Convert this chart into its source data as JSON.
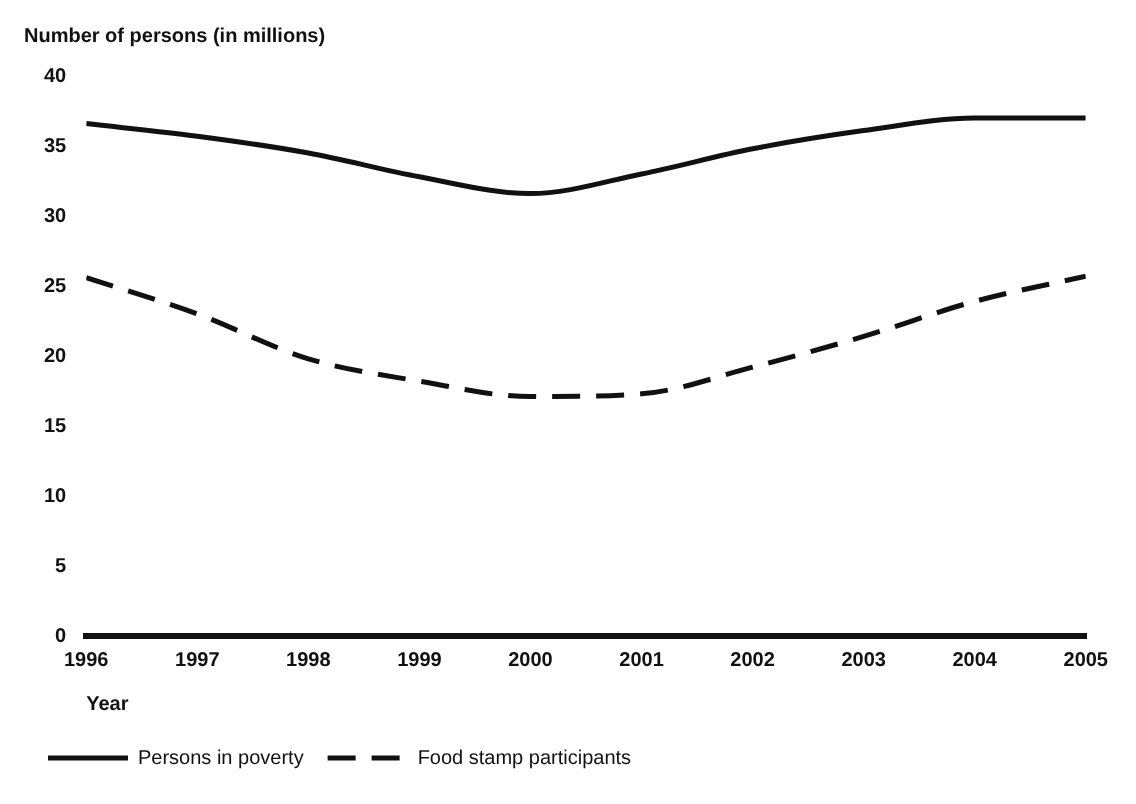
{
  "chart_data": {
    "type": "line",
    "ylabel": "Number of persons (in millions)",
    "xlabel": "Year",
    "x": [
      1996,
      1997,
      1998,
      1999,
      2000,
      2001,
      2002,
      2003,
      2004,
      2005
    ],
    "series": [
      {
        "name": "Persons in poverty",
        "color": "#111111",
        "line_style": "solid",
        "values": [
          36.6,
          35.7,
          34.5,
          32.8,
          31.6,
          33.0,
          34.8,
          36.1,
          37.0,
          37.0
        ]
      },
      {
        "name": "Food stamp participants",
        "color": "#111111",
        "line_style": "dashed",
        "values": [
          25.6,
          23.0,
          19.8,
          18.2,
          17.1,
          17.3,
          19.2,
          21.4,
          23.9,
          25.7
        ]
      }
    ],
    "xlim": [
      1996,
      2005
    ],
    "xticks": [
      1996,
      1997,
      1998,
      1999,
      2000,
      2001,
      2002,
      2003,
      2004,
      2005
    ],
    "ylim": [
      0,
      40
    ],
    "yticks": [
      0,
      5,
      10,
      15,
      20,
      25,
      30,
      35,
      40
    ],
    "grid": false,
    "legend": "bottom left",
    "marker": "none"
  }
}
